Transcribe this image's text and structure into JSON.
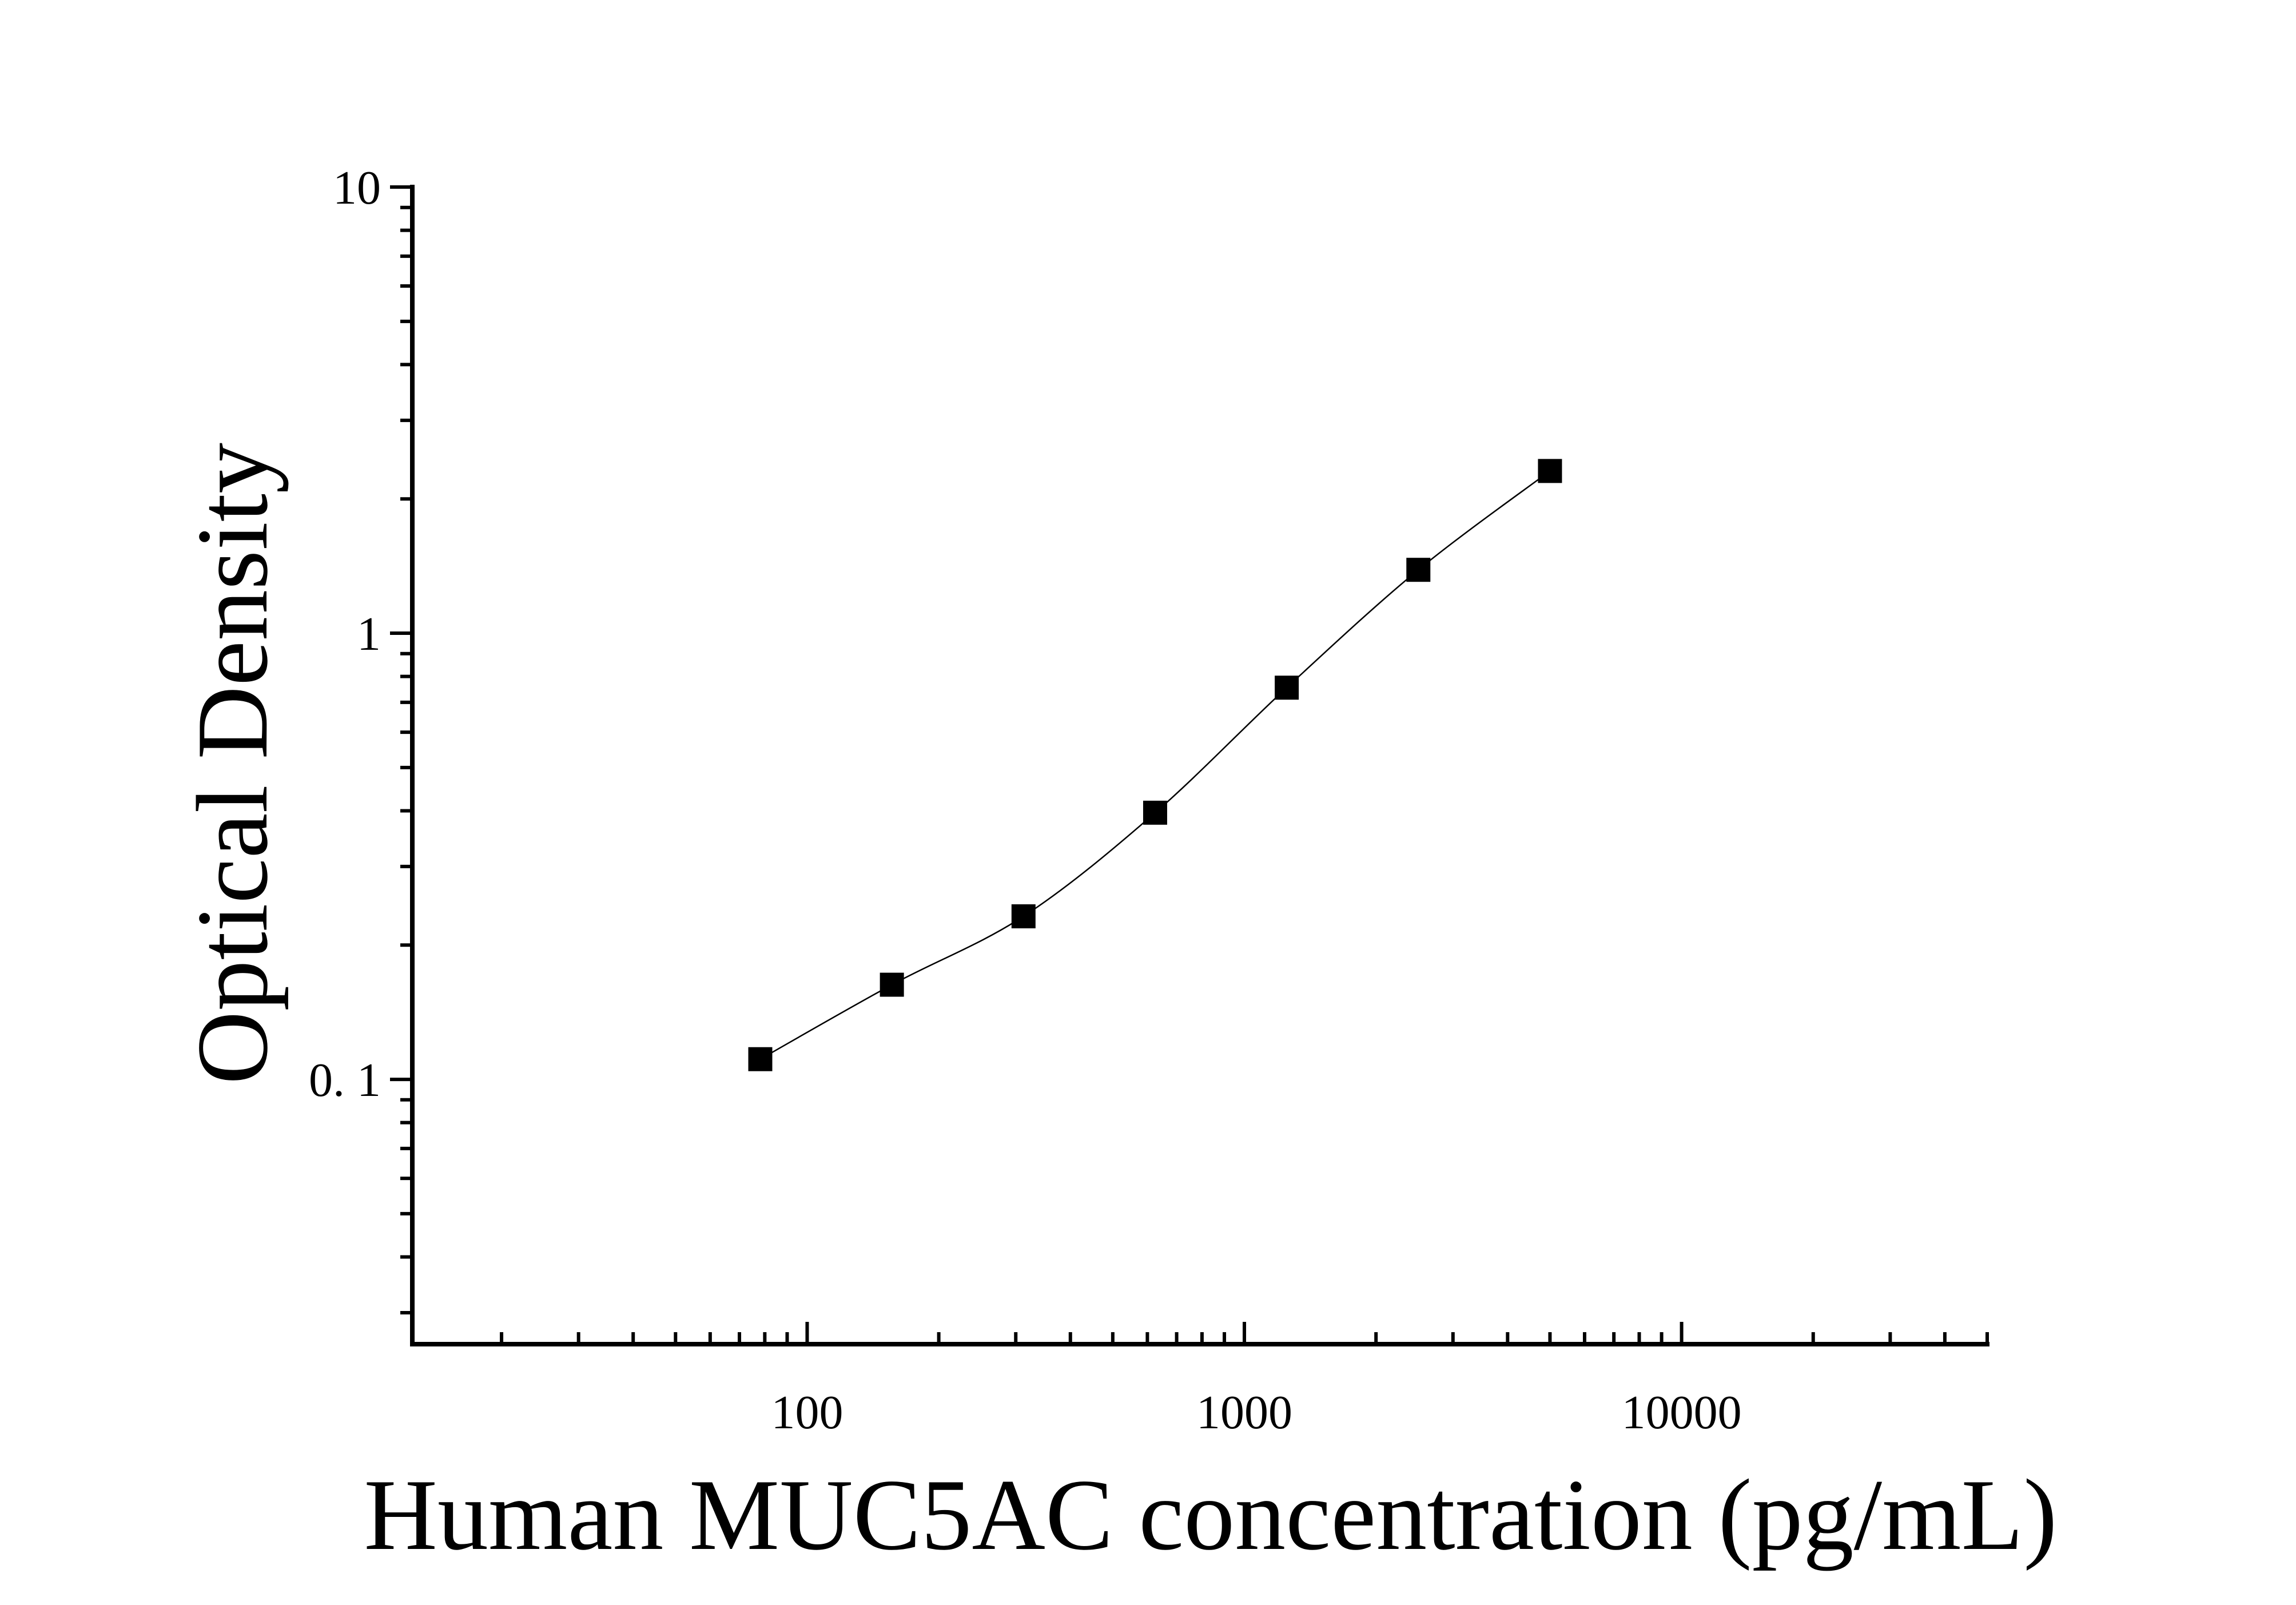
{
  "chart_data": {
    "type": "scatter",
    "xlabel": "Human MUC5AC concentration (pg/mL)",
    "ylabel": "Optical Density",
    "x_scale": "log",
    "y_scale": "log",
    "xlim": [
      12.5,
      50000
    ],
    "ylim": [
      0.0255,
      10
    ],
    "x_ticks": [
      {
        "value": 100,
        "label": "100"
      },
      {
        "value": 1000,
        "label": "1000"
      },
      {
        "value": 10000,
        "label": "10000"
      }
    ],
    "y_ticks": [
      {
        "value": 10,
        "label": "10"
      },
      {
        "value": 1,
        "label": "1"
      },
      {
        "value": 0.1,
        "label": "0. 1"
      }
    ],
    "grid": false,
    "legend": "none",
    "series": [
      {
        "x": [
          78.125,
          156.25,
          312.5,
          625,
          1250,
          2500,
          5000
        ],
        "y": [
          0.111,
          0.163,
          0.232,
          0.396,
          0.755,
          1.387,
          2.31
        ],
        "marker": "square",
        "fit_curve": true
      }
    ],
    "colors": {
      "marker": "#000000",
      "line": "#000000",
      "background": "#ffffff"
    }
  }
}
